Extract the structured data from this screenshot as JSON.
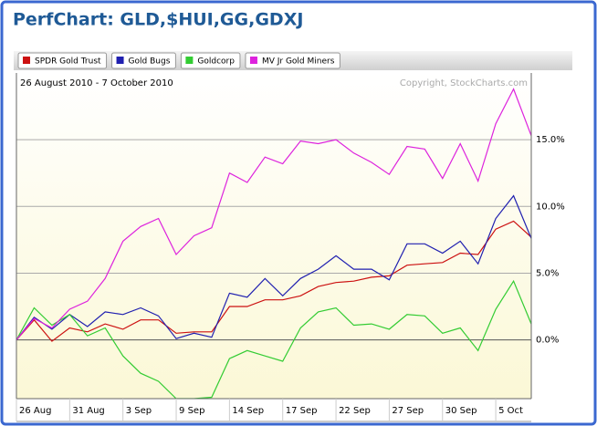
{
  "chart_data": {
    "type": "line",
    "title": "PerfChart: GLD,$HUI,GG,GDXJ",
    "subtitle": "26 August 2010 - 7 October 2010",
    "copyright": "Copyright, StockCharts.com",
    "categories": [
      "26 Aug",
      null,
      null,
      "31 Aug",
      null,
      null,
      "3 Sep",
      null,
      null,
      "9 Sep",
      null,
      null,
      "14 Sep",
      null,
      null,
      "17 Sep",
      null,
      null,
      "22 Sep",
      null,
      null,
      "27 Sep",
      null,
      null,
      "30 Sep",
      null,
      null,
      "5 Oct",
      null,
      null
    ],
    "series": [
      {
        "name": "SPDR Gold Trust",
        "color": "#cc1111",
        "values": [
          0,
          1.5,
          -0.1,
          0.9,
          0.6,
          1.2,
          0.8,
          1.5,
          1.5,
          0.5,
          0.6,
          0.6,
          2.5,
          2.5,
          3.0,
          3.0,
          3.3,
          4.0,
          4.3,
          4.4,
          4.7,
          4.8,
          5.6,
          5.7,
          5.8,
          6.5,
          6.4,
          8.3,
          8.9,
          7.7
        ]
      },
      {
        "name": "Gold Bugs",
        "color": "#2020b0",
        "values": [
          0,
          1.7,
          0.8,
          1.9,
          1.0,
          2.1,
          1.9,
          2.4,
          1.8,
          0.1,
          0.5,
          0.2,
          3.5,
          3.2,
          4.6,
          3.3,
          4.6,
          5.3,
          6.3,
          5.3,
          5.3,
          4.5,
          7.2,
          7.2,
          6.5,
          7.4,
          5.7,
          9.1,
          10.8,
          7.6
        ]
      },
      {
        "name": "Goldcorp",
        "color": "#33cc33",
        "values": [
          0,
          2.4,
          1.1,
          1.9,
          0.3,
          0.9,
          -1.2,
          -2.5,
          -3.1,
          -4.4,
          -4.4,
          -4.3,
          -1.4,
          -0.8,
          -1.2,
          -1.6,
          0.9,
          2.1,
          2.4,
          1.1,
          1.2,
          0.8,
          1.9,
          1.8,
          0.5,
          0.9,
          -0.8,
          2.3,
          4.4,
          1.2
        ]
      },
      {
        "name": "MV Jr Gold Miners",
        "color": "#dd22dd",
        "values": [
          0,
          1.6,
          0.9,
          2.3,
          2.9,
          4.6,
          7.4,
          8.5,
          9.1,
          6.4,
          7.8,
          8.4,
          12.5,
          11.8,
          13.7,
          13.2,
          14.9,
          14.7,
          15.0,
          14.0,
          13.3,
          12.4,
          14.5,
          14.3,
          12.1,
          14.7,
          11.9,
          16.2,
          18.8,
          15.3
        ]
      }
    ],
    "ylim": [
      -4.4,
      20
    ],
    "yticks": [
      {
        "value": 0,
        "label": "0.0%"
      },
      {
        "value": 5,
        "label": "5.0%"
      },
      {
        "value": 10,
        "label": "10.0%"
      },
      {
        "value": 15,
        "label": "15.0%"
      }
    ],
    "grid": true
  }
}
